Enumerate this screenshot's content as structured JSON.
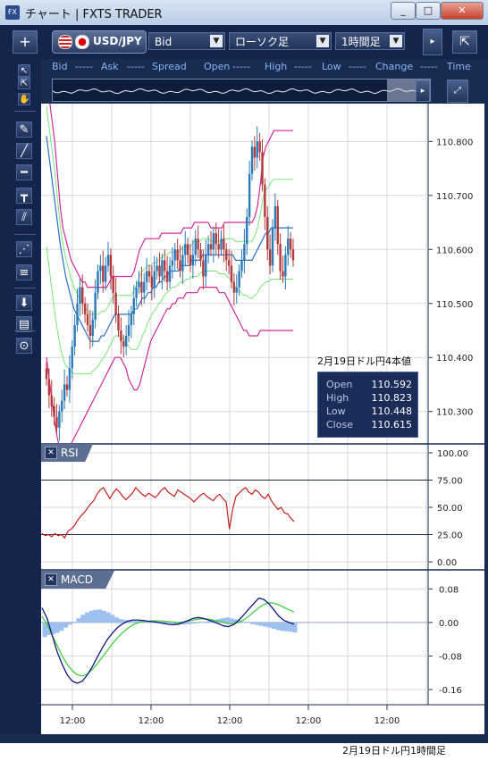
{
  "window": {
    "title": "チャート | FXTS TRADER",
    "app_icon": "FX",
    "minimize": "_",
    "maximize": "□",
    "close": "✕"
  },
  "toolbar": {
    "add_button": "+",
    "pair": "USD/JPY",
    "price_type": "Bid",
    "chart_type": "ローソク足",
    "timeframe": "1時間足",
    "dropdown_glyph": "▼"
  },
  "info_bar": [
    "Bid",
    "-----",
    "Ask",
    "-----",
    "Spread",
    "Open",
    "-----",
    "High",
    "-----",
    "Low",
    "-----",
    "Change",
    "-----",
    "Time"
  ],
  "tools": [
    "↖",
    "⇱",
    "✋",
    "✎",
    "╱",
    "━",
    "┳",
    "⫽",
    "⋰",
    "≡",
    "⬇",
    "▤",
    "⊙"
  ],
  "ohlc": {
    "title": "2月19日ドル円4本値",
    "rows": [
      {
        "label": "Open",
        "value": "110.592"
      },
      {
        "label": "High",
        "value": "110.823"
      },
      {
        "label": "Low",
        "value": "110.448"
      },
      {
        "label": "Close",
        "value": "110.615"
      }
    ]
  },
  "panels": {
    "rsi": "RSI",
    "macd": "MACD",
    "close_glyph": "✕"
  },
  "caption": "2月19日ドル円1時間足",
  "colors": {
    "bg": "#ffffff",
    "grid": "#d6d9e0",
    "up": "#2a7ab8",
    "down": "#b33a3a",
    "bb_outer": "#d02a9a",
    "bb_inner": "#78e878",
    "ma": "#2a70c8",
    "rsi": "#c82020",
    "macd": "#101880",
    "signal": "#40d040",
    "hist": "#9ec0f0"
  },
  "chart_data": [
    {
      "type": "candlestick",
      "x_tick_labels": [
        "12:00",
        "12:00",
        "12:00",
        "12:00",
        "12:00"
      ],
      "y_tick_labels": [
        "110.800",
        "110.700",
        "110.600",
        "110.500",
        "110.400",
        "110.300"
      ],
      "ylim": [
        110.24,
        110.87
      ],
      "close": [
        110.36,
        110.33,
        110.31,
        110.29,
        110.27,
        110.3,
        110.32,
        110.35,
        110.34,
        110.38,
        110.42,
        110.46,
        110.5,
        110.53,
        110.5,
        110.48,
        110.46,
        110.44,
        110.47,
        110.52,
        110.56,
        110.57,
        110.54,
        110.57,
        110.59,
        110.55,
        110.52,
        110.48,
        110.45,
        110.43,
        110.42,
        110.44,
        110.46,
        110.48,
        110.51,
        110.53,
        110.54,
        110.52,
        110.54,
        110.56,
        110.55,
        110.53,
        110.56,
        110.57,
        110.55,
        110.58,
        110.56,
        110.54,
        110.57,
        110.58,
        110.6,
        110.58,
        110.56,
        110.59,
        110.61,
        110.59,
        110.57,
        110.59,
        110.62,
        110.6,
        110.58,
        110.55,
        110.59,
        110.61,
        110.6,
        110.63,
        110.61,
        110.6,
        110.62,
        110.6,
        110.58,
        110.57,
        110.54,
        110.52,
        110.53,
        110.56,
        110.58,
        110.61,
        110.66,
        110.74,
        110.79,
        110.77,
        110.8,
        110.78,
        110.72,
        110.66,
        110.6,
        110.57,
        110.64,
        110.68,
        110.61,
        110.56,
        110.55,
        110.59,
        110.62,
        110.6,
        110.58
      ],
      "bb_upper": [
        110.92,
        110.88,
        110.84,
        110.8,
        110.74,
        110.68,
        110.64,
        110.62,
        110.6,
        110.58,
        110.57,
        110.56,
        110.55,
        110.54,
        110.54,
        110.53,
        110.53,
        110.53,
        110.53,
        110.53,
        110.53,
        110.53,
        110.53,
        110.54,
        110.55,
        110.55,
        110.55,
        110.55,
        110.55,
        110.55,
        110.55,
        110.55,
        110.56,
        110.58,
        110.6,
        110.61,
        110.62,
        110.62,
        110.62,
        110.62,
        110.62,
        110.62,
        110.63,
        110.63,
        110.63,
        110.63,
        110.63,
        110.63,
        110.63,
        110.63,
        110.64,
        110.64,
        110.64,
        110.64,
        110.65,
        110.65,
        110.65,
        110.65,
        110.65,
        110.65,
        110.64,
        110.64,
        110.64,
        110.64,
        110.64,
        110.65,
        110.65,
        110.65,
        110.65,
        110.65,
        110.65,
        110.65,
        110.65,
        110.65,
        110.65,
        110.65,
        110.66,
        110.68,
        110.72,
        110.77,
        110.79,
        110.8,
        110.81,
        110.82,
        110.82,
        110.82,
        110.82,
        110.82,
        110.82,
        110.82,
        110.82
      ],
      "bb_lower": [
        110.4,
        110.36,
        110.32,
        110.28,
        110.25,
        110.23,
        110.22,
        110.22,
        110.23,
        110.24,
        110.25,
        110.26,
        110.27,
        110.28,
        110.29,
        110.3,
        110.31,
        110.32,
        110.33,
        110.34,
        110.35,
        110.36,
        110.37,
        110.38,
        110.39,
        110.4,
        110.4,
        110.4,
        110.39,
        110.38,
        110.36,
        110.35,
        110.34,
        110.34,
        110.35,
        110.37,
        110.39,
        110.41,
        110.43,
        110.44,
        110.45,
        110.46,
        110.47,
        110.48,
        110.49,
        110.49,
        110.5,
        110.5,
        110.51,
        110.51,
        110.51,
        110.52,
        110.52,
        110.52,
        110.52,
        110.52,
        110.53,
        110.53,
        110.53,
        110.53,
        110.53,
        110.53,
        110.53,
        110.52,
        110.52,
        110.52,
        110.51,
        110.5,
        110.49,
        110.48,
        110.47,
        110.46,
        110.45,
        110.45,
        110.44,
        110.44,
        110.44,
        110.44,
        110.45,
        110.45,
        110.45,
        110.45,
        110.45,
        110.45,
        110.45,
        110.45,
        110.45,
        110.45,
        110.45,
        110.45,
        110.45
      ],
      "ma": [
        110.81,
        110.77,
        110.73,
        110.69,
        110.65,
        110.61,
        110.58,
        110.55,
        110.53,
        110.51,
        110.49,
        110.48,
        110.47,
        110.46,
        110.45,
        110.44,
        110.43,
        110.43,
        110.43,
        110.43,
        110.44,
        110.44,
        110.45,
        110.46,
        110.47,
        110.48,
        110.48,
        110.48,
        110.48,
        110.48,
        110.48,
        110.48,
        110.49,
        110.49,
        110.5,
        110.51,
        110.51,
        110.52,
        110.52,
        110.53,
        110.53,
        110.54,
        110.54,
        110.55,
        110.55,
        110.56,
        110.56,
        110.56,
        110.56,
        110.57,
        110.57,
        110.57,
        110.57,
        110.58,
        110.58,
        110.58,
        110.58,
        110.59,
        110.59,
        110.59,
        110.59,
        110.59,
        110.59,
        110.59,
        110.59,
        110.59,
        110.59,
        110.59,
        110.59,
        110.58,
        110.58,
        110.58,
        110.58,
        110.58,
        110.58,
        110.58,
        110.59,
        110.6,
        110.61,
        110.62,
        110.63,
        110.63,
        110.64,
        110.64,
        110.64,
        110.64,
        110.64,
        110.64,
        110.64,
        110.64,
        110.64
      ]
    },
    {
      "type": "line",
      "title": "RSI",
      "y_tick_labels": [
        "100.00",
        "75.00",
        "50.00",
        "25.00",
        "0.00"
      ],
      "ylim": [
        0,
        100
      ],
      "values": [
        26,
        24,
        25,
        23,
        26,
        24,
        25,
        22,
        28,
        30,
        33,
        38,
        42,
        45,
        49,
        53,
        56,
        62,
        66,
        68,
        63,
        58,
        63,
        67,
        64,
        60,
        57,
        60,
        63,
        68,
        65,
        62,
        60,
        63,
        61,
        59,
        62,
        66,
        68,
        64,
        62,
        60,
        66,
        64,
        62,
        60,
        58,
        55,
        58,
        61,
        63,
        60,
        58,
        56,
        60,
        62,
        58,
        55,
        30,
        48,
        60,
        63,
        66,
        68,
        64,
        62,
        66,
        64,
        60,
        58,
        62,
        56,
        52,
        48,
        50,
        45,
        44,
        40,
        37
      ]
    },
    {
      "type": "bar+line",
      "title": "MACD",
      "y_tick_labels": [
        "0.08",
        "0.00",
        "-0.08",
        "-0.16"
      ],
      "ylim": [
        -0.175,
        0.1
      ],
      "histogram": [
        -0.035,
        -0.03,
        -0.028,
        -0.025,
        -0.02,
        -0.012,
        -0.005,
        0.002,
        0.01,
        0.018,
        0.024,
        0.028,
        0.03,
        0.031,
        0.028,
        0.024,
        0.018,
        0.012,
        0.008,
        0.006,
        0.005,
        0.004,
        0.004,
        0.005,
        0.005,
        0.004,
        0.003,
        0.002,
        0.001,
        0.0,
        -0.002,
        -0.004,
        -0.005,
        -0.005,
        -0.004,
        -0.003,
        -0.002,
        0.0,
        0.002,
        0.004,
        0.006,
        0.008,
        0.01,
        0.012,
        0.01,
        0.008,
        0.005,
        0.002,
        -0.001,
        -0.004,
        -0.006,
        -0.008,
        -0.01,
        -0.012,
        -0.015,
        -0.018,
        -0.02,
        -0.021,
        -0.022,
        -0.024
      ],
      "macd": [
        0.035,
        0.01,
        -0.03,
        -0.07,
        -0.1,
        -0.125,
        -0.14,
        -0.145,
        -0.14,
        -0.125,
        -0.105,
        -0.082,
        -0.06,
        -0.04,
        -0.025,
        -0.012,
        -0.003,
        0.003,
        0.006,
        0.006,
        0.005,
        0.003,
        0.002,
        0.0,
        -0.002,
        -0.004,
        -0.005,
        -0.004,
        0.0,
        0.005,
        0.01,
        0.012,
        0.01,
        0.006,
        0.002,
        -0.003,
        -0.008,
        -0.01,
        -0.005,
        0.005,
        0.018,
        0.032,
        0.045,
        0.058,
        0.055,
        0.045,
        0.03,
        0.015,
        0.005,
        0.0,
        -0.004
      ],
      "signal": [
        0.015,
        -0.005,
        -0.03,
        -0.055,
        -0.08,
        -0.1,
        -0.115,
        -0.125,
        -0.128,
        -0.123,
        -0.112,
        -0.098,
        -0.082,
        -0.066,
        -0.05,
        -0.036,
        -0.024,
        -0.014,
        -0.006,
        -0.001,
        0.002,
        0.003,
        0.004,
        0.004,
        0.003,
        0.002,
        0.001,
        0.0,
        0.001,
        0.003,
        0.006,
        0.008,
        0.009,
        0.008,
        0.006,
        0.003,
        0.0,
        -0.003,
        -0.003,
        0.0,
        0.006,
        0.015,
        0.025,
        0.035,
        0.043,
        0.047,
        0.046,
        0.042,
        0.036,
        0.03,
        0.025
      ]
    }
  ]
}
